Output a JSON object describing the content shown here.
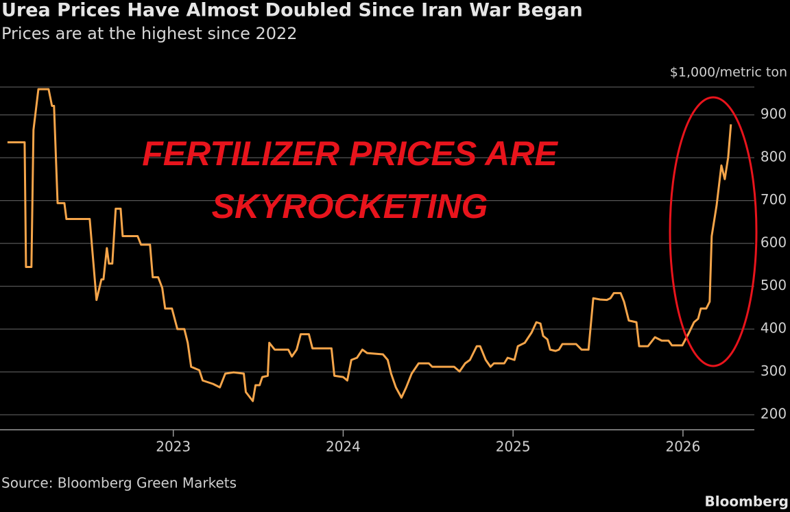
{
  "chart_data": {
    "type": "line",
    "title": "Urea Prices Have Almost Doubled Since Iran War Began",
    "subtitle": "Prices are at the highest since 2022",
    "unit_label": "$1,000/metric ton",
    "source": "Source: Bloomberg Green Markets",
    "brand": "Bloomberg",
    "annotations": [
      "FERTILIZER PRICES ARE",
      "SKYROCKETING"
    ],
    "color": "#f5a54a",
    "grid": true,
    "xlim": [
      2021.98,
      2026.42
    ],
    "xticks": [
      2023,
      2024,
      2025,
      2026
    ],
    "ylim": [
      165,
      965
    ],
    "yticks": [
      200,
      300,
      400,
      500,
      600,
      700,
      800,
      900
    ],
    "x": [
      2022.024,
      2022.125,
      2022.133,
      2022.165,
      2022.177,
      2022.206,
      2022.266,
      2022.286,
      2022.298,
      2022.319,
      2022.359,
      2022.371,
      2022.508,
      2022.548,
      2022.577,
      2022.589,
      2022.609,
      2022.621,
      2022.641,
      2022.661,
      2022.69,
      2022.702,
      2022.79,
      2022.81,
      2022.863,
      2022.879,
      2022.911,
      2022.935,
      2022.952,
      2022.992,
      2023.024,
      2023.065,
      2023.085,
      2023.105,
      2023.153,
      2023.173,
      2023.234,
      2023.274,
      2023.306,
      2023.355,
      2023.415,
      2023.427,
      2023.468,
      2023.484,
      2023.508,
      2023.524,
      2023.556,
      2023.565,
      2023.597,
      2023.677,
      2023.698,
      2023.726,
      2023.75,
      2023.798,
      2023.819,
      2023.931,
      2023.948,
      2024.0,
      2024.024,
      2024.048,
      2024.081,
      2024.113,
      2024.141,
      2024.234,
      2024.262,
      2024.282,
      2024.31,
      2024.343,
      2024.371,
      2024.403,
      2024.444,
      2024.504,
      2024.524,
      2024.653,
      2024.685,
      2024.718,
      2024.746,
      2024.766,
      2024.786,
      2024.806,
      2024.839,
      2024.867,
      2024.887,
      2024.948,
      2024.968,
      2025.008,
      2025.028,
      2025.069,
      2025.109,
      2025.137,
      2025.161,
      2025.177,
      2025.202,
      2025.218,
      2025.25,
      2025.27,
      2025.29,
      2025.371,
      2025.403,
      2025.444,
      2025.472,
      2025.512,
      2025.552,
      2025.573,
      2025.593,
      2025.633,
      2025.653,
      2025.681,
      2025.726,
      2025.742,
      2025.794,
      2025.835,
      2025.875,
      2025.915,
      2025.935,
      2025.996,
      2026.036,
      2026.065,
      2026.089,
      2026.105,
      2026.137,
      2026.157,
      2026.169,
      2026.198,
      2026.226,
      2026.246,
      2026.266,
      2026.282
    ],
    "values": [
      836,
      836,
      545,
      545,
      865,
      960,
      960,
      921,
      921,
      694,
      694,
      657,
      657,
      468,
      516,
      516,
      589,
      553,
      553,
      681,
      681,
      617,
      617,
      597,
      597,
      521,
      521,
      496,
      448,
      448,
      400,
      400,
      368,
      312,
      304,
      280,
      272,
      264,
      296,
      299,
      296,
      253,
      232,
      269,
      269,
      288,
      291,
      368,
      352,
      352,
      336,
      352,
      388,
      388,
      355,
      355,
      291,
      288,
      280,
      328,
      333,
      352,
      344,
      341,
      328,
      296,
      264,
      240,
      264,
      296,
      320,
      320,
      312,
      312,
      301,
      320,
      328,
      344,
      360,
      360,
      328,
      312,
      320,
      320,
      333,
      328,
      360,
      368,
      392,
      416,
      413,
      384,
      376,
      352,
      349,
      352,
      365,
      365,
      352,
      352,
      472,
      469,
      468,
      472,
      484,
      484,
      464,
      420,
      416,
      360,
      360,
      381,
      373,
      373,
      362,
      362,
      392,
      416,
      424,
      448,
      448,
      464,
      617,
      689,
      782,
      750,
      801,
      878
    ]
  }
}
